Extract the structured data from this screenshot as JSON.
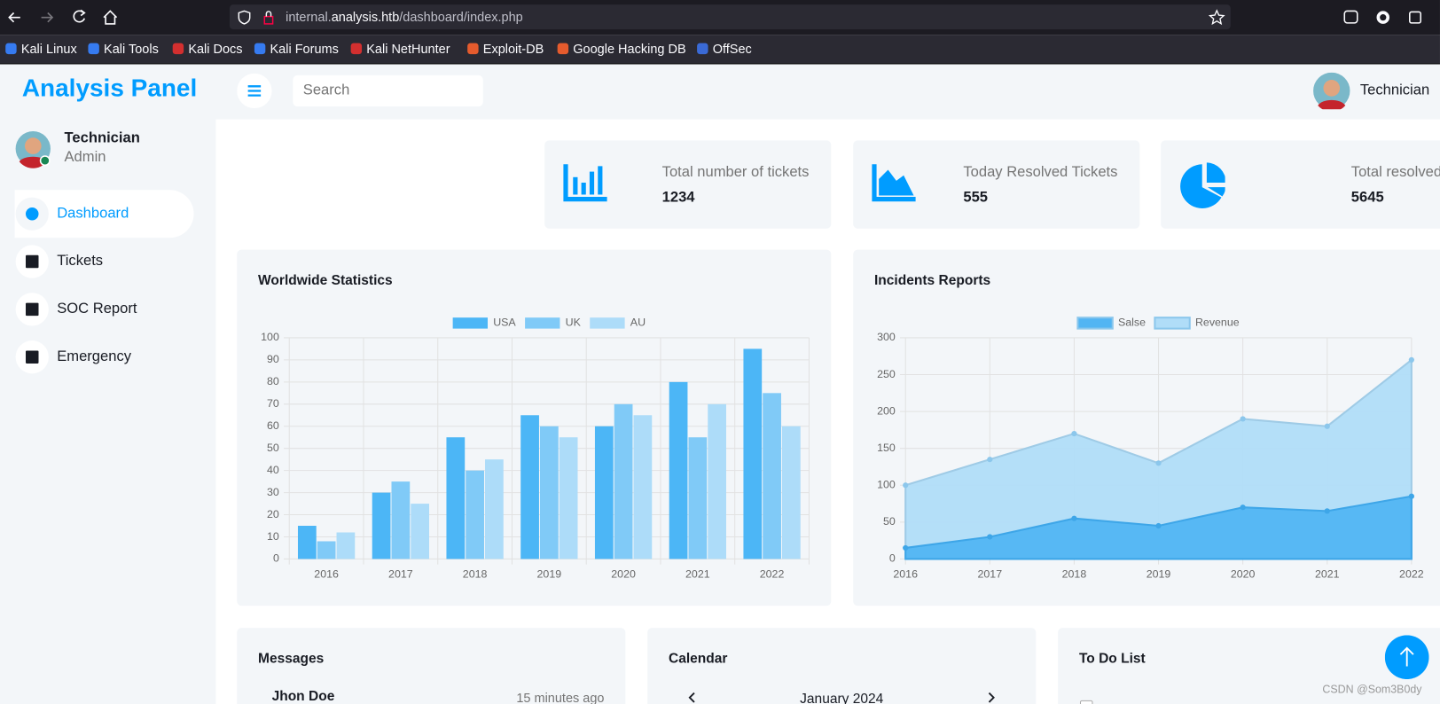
{
  "browser": {
    "url": {
      "prefix": "internal.",
      "domain": "analysis.htb",
      "path": "/dashboard/index.php"
    },
    "bookmarks": [
      "Kali Linux",
      "Kali Tools",
      "Kali Docs",
      "Kali Forums",
      "Kali NetHunter",
      "Exploit-DB",
      "Google Hacking DB",
      "OffSec"
    ]
  },
  "header": {
    "brand": "Analysis Panel",
    "search_placeholder": "Search",
    "user": "Technician"
  },
  "sidebar": {
    "profile": {
      "name": "Technician",
      "role": "Admin"
    },
    "nav": [
      "Dashboard",
      "Tickets",
      "SOC Report",
      "Emergency"
    ]
  },
  "stats": [
    {
      "label": "Total number of tickets",
      "value": 1234
    },
    {
      "label": "Today Resolved Tickets",
      "value": 555
    },
    {
      "label": "Total resolved",
      "value": 5645
    }
  ],
  "charts": [
    {
      "type": "bar",
      "title": "Worldwide Statistics",
      "categories": [
        "2016",
        "2017",
        "2018",
        "2019",
        "2020",
        "2021",
        "2022"
      ],
      "series": [
        {
          "name": "USA",
          "color": "#4cb6f6",
          "values": [
            15,
            30,
            55,
            65,
            60,
            80,
            95
          ]
        },
        {
          "name": "UK",
          "color": "#80caf7",
          "values": [
            8,
            35,
            40,
            60,
            70,
            55,
            75
          ]
        },
        {
          "name": "AU",
          "color": "#addcf9",
          "values": [
            12,
            25,
            45,
            55,
            65,
            70,
            60
          ]
        }
      ],
      "ylim": [
        0,
        100
      ],
      "yticks": [
        0,
        10,
        20,
        30,
        40,
        50,
        60,
        70,
        80,
        90,
        100
      ],
      "grid": true,
      "legend": "top"
    },
    {
      "type": "line",
      "title": "Incidents Reports",
      "categories": [
        "2016",
        "2017",
        "2018",
        "2019",
        "2020",
        "2021",
        "2022"
      ],
      "series": [
        {
          "name": "Salse",
          "color": "#52b5f3",
          "values": [
            15,
            30,
            55,
            45,
            70,
            65,
            85
          ]
        },
        {
          "name": "Revenue",
          "color": "#b0ddf8",
          "values": [
            100,
            135,
            170,
            130,
            190,
            180,
            270
          ]
        }
      ],
      "ylim": [
        0,
        300
      ],
      "yticks": [
        0,
        50,
        100,
        150,
        200,
        250,
        300
      ],
      "grid": true,
      "legend": "top",
      "fill": true
    }
  ],
  "messages": {
    "title": "Messages",
    "items": [
      {
        "name": "Jhon Doe",
        "time": "15 minutes ago"
      }
    ]
  },
  "calendar": {
    "title": "Calendar",
    "month": "January 2024"
  },
  "todo": {
    "title": "To Do List"
  },
  "watermark": "CSDN @Som3B0dy"
}
